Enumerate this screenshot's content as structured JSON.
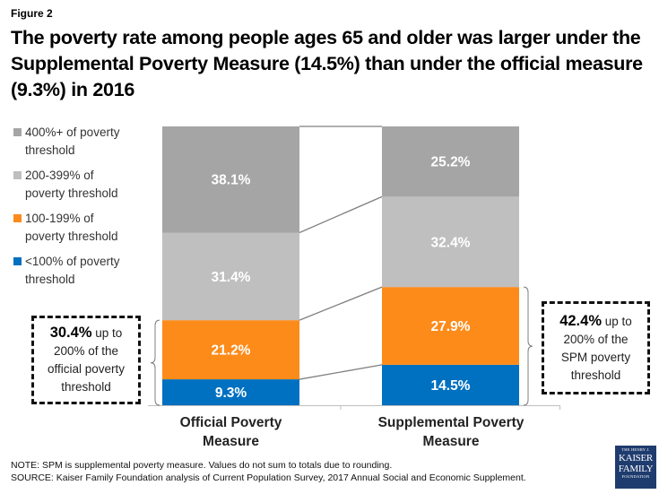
{
  "figure_label": "Figure 2",
  "title": "The poverty rate among people ages 65 and older was larger under the Supplemental Poverty Measure (14.5%) than under the official measure (9.3%) in 2016",
  "chart_data": {
    "type": "bar",
    "stacked": true,
    "percent_stacked": true,
    "title": "The poverty rate among people ages 65 and older was larger under the Supplemental Poverty Measure (14.5%) than under the official measure (9.3%) in 2016",
    "xlabel": "",
    "ylabel": "",
    "ylim": [
      0,
      100
    ],
    "grid": false,
    "legend_position": "left",
    "series_lines": true,
    "categories": [
      "Official Poverty Measure",
      "Supplemental Poverty Measure"
    ],
    "series": [
      {
        "name": "<100% of poverty threshold",
        "color": "#0070c0",
        "values": [
          9.3,
          14.5
        ],
        "labels": [
          "9.3%",
          "14.5%"
        ]
      },
      {
        "name": "100-199% of poverty threshold",
        "color": "#fd8b1a",
        "values": [
          21.2,
          27.9
        ],
        "labels": [
          "21.2%",
          "27.9%"
        ]
      },
      {
        "name": "200-399% of poverty threshold",
        "color": "#bfbfbf",
        "values": [
          31.4,
          32.4
        ],
        "labels": [
          "31.4%",
          "32.4%"
        ]
      },
      {
        "name": "400%+ of poverty threshold",
        "color": "#a5a5a5",
        "values": [
          38.1,
          25.2
        ],
        "labels": [
          "38.1%",
          "25.2%"
        ]
      }
    ],
    "annotations": [
      {
        "target": "Official Poverty Measure",
        "bold": "30.4%",
        "text": "up to 200% of the official poverty threshold"
      },
      {
        "target": "Supplemental Poverty Measure",
        "bold": "42.4%",
        "text": "up to 200% of the SPM poverty threshold"
      }
    ]
  },
  "legend": [
    {
      "label_1": "400%+ of poverty",
      "label_2": "threshold",
      "color": "#a5a5a5"
    },
    {
      "label_1": "200-399% of",
      "label_2": "poverty threshold",
      "color": "#bfbfbf"
    },
    {
      "label_1": "100-199% of",
      "label_2": "poverty threshold",
      "color": "#fd8b1a"
    },
    {
      "label_1": "<100% of poverty",
      "label_2": "threshold",
      "color": "#0070c0"
    }
  ],
  "categories": {
    "official": {
      "line1": "Official Poverty",
      "line2": "Measure"
    },
    "spm": {
      "line1": "Supplemental Poverty",
      "line2": "Measure"
    }
  },
  "callouts": {
    "left": {
      "bold": "30.4%",
      "line1_rest": " up to",
      "line2": "200% of the",
      "line3": "official poverty",
      "line4": "threshold"
    },
    "right": {
      "bold": "42.4%",
      "line1_rest": " up to",
      "line2": "200% of the",
      "line3": "SPM poverty",
      "line4": "threshold"
    }
  },
  "notes": {
    "note": "NOTE: SPM is supplemental poverty measure. Values do not sum to totals due to rounding.",
    "source": "SOURCE: Kaiser Family Foundation analysis of Current Population Survey, 2017 Annual Social and Economic Supplement."
  },
  "logo": {
    "line1": "THE HENRY J.",
    "line2": "KAISER",
    "line3": "FAMILY",
    "line4": "FOUNDATION",
    "color": "#1f3c6e"
  }
}
